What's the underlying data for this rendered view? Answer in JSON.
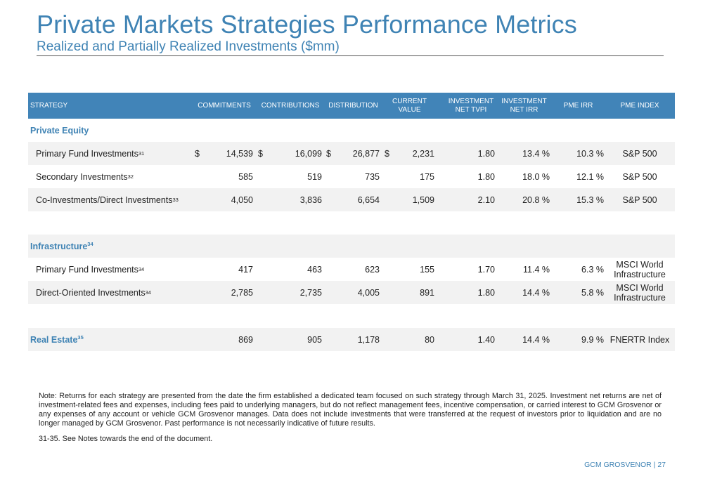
{
  "title": "Private Markets Strategies Performance Metrics",
  "subtitle": "Realized and Partially Realized Investments ($mm)",
  "headers": {
    "strategy": "STRATEGY",
    "commitments": "COMMITMENTS",
    "contributions": "CONTRIBUTIONS",
    "distribution": "DISTRIBUTION",
    "current_value": "CURRENT VALUE",
    "investment_net_tvpi": "INVESTMENT NET TVPI",
    "investment_net_irr": "INVESTMENT NET IRR",
    "pme_irr": "PME IRR",
    "pme_index": "PME INDEX"
  },
  "sections": {
    "private_equity": {
      "label": "Private Equity",
      "rows": [
        {
          "name": "Primary Fund Investments",
          "sup": "31",
          "cur_commit": "$",
          "commitments": "14,539",
          "cur_contrib": "$",
          "contributions": "16,099",
          "cur_dist": "$",
          "distribution": "26,877",
          "cur_value": "$",
          "current_value": "2,231",
          "tvpi": "1.80",
          "net_irr": "13.4 %",
          "pme_irr": "10.3 %",
          "pme_index": "S&P 500"
        },
        {
          "name": "Secondary Investments",
          "sup": "32",
          "commitments": "585",
          "contributions": "519",
          "distribution": "735",
          "current_value": "175",
          "tvpi": "1.80",
          "net_irr": "18.0 %",
          "pme_irr": "12.1 %",
          "pme_index": "S&P 500"
        },
        {
          "name": "Co-Investments/Direct Investments",
          "sup": "33",
          "commitments": "4,050",
          "contributions": "3,836",
          "distribution": "6,654",
          "current_value": "1,509",
          "tvpi": "2.10",
          "net_irr": "20.8 %",
          "pme_irr": "15.3 %",
          "pme_index": "S&P 500"
        }
      ]
    },
    "infrastructure": {
      "label": "Infrastructure",
      "sup": "34",
      "rows": [
        {
          "name": "Primary Fund Investments",
          "sup": "34",
          "commitments": "417",
          "contributions": "463",
          "distribution": "623",
          "current_value": "155",
          "tvpi": "1.70",
          "net_irr": "11.4 %",
          "pme_irr": "6.3 %",
          "pme_index": "MSCI World Infrastructure"
        },
        {
          "name": "Direct-Oriented Investments",
          "sup": "34",
          "commitments": "2,785",
          "contributions": "2,735",
          "distribution": "4,005",
          "current_value": "891",
          "tvpi": "1.80",
          "net_irr": "14.4 %",
          "pme_irr": "5.8 %",
          "pme_index": "MSCI World Infrastructure"
        }
      ]
    },
    "real_estate": {
      "label": "Real Estate",
      "sup": "35",
      "commitments": "869",
      "contributions": "905",
      "distribution": "1,178",
      "current_value": "80",
      "tvpi": "1.40",
      "net_irr": "14.4 %",
      "pme_irr": "9.9 %",
      "pme_index": "FNERTR Index"
    }
  },
  "note": "Note: Returns for each strategy are presented from the date the firm established a dedicated team focused on such strategy through March 31, 2025. Investment net returns are net of investment-related fees and expenses, including fees paid to underlying managers, but do not reflect management fees, incentive compensation, or carried interest to GCM Grosvenor or any expenses of any account or vehicle GCM Grosvenor manages. Data does not include investments that were transferred at the request of investors prior to liquidation and are no longer managed by GCM Grosvenor. Past performance is not necessarily indicative of future results.",
  "refs": "31-35.   See Notes towards the end of the document.",
  "footer": "GCM GROSVENOR | 27",
  "colors": {
    "accent": "#3f83b4",
    "header_bg": "#4184b8",
    "row_shade": "#f2f2f2"
  }
}
